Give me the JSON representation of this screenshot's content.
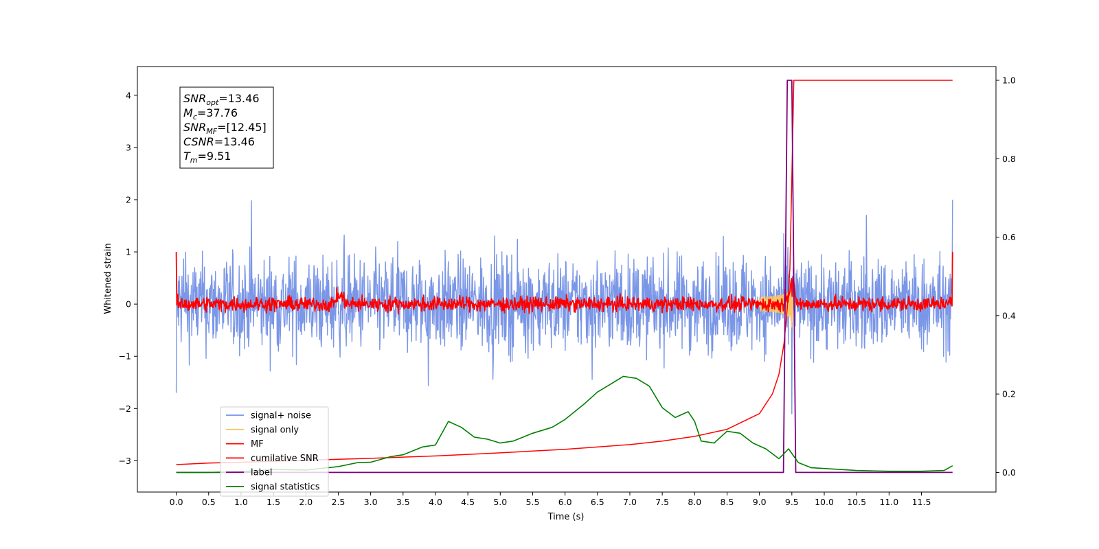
{
  "chart_data": {
    "type": "line",
    "xlabel": "Time (s)",
    "ylabel": "Whitened strain",
    "xlim": [
      -0.6,
      12.65
    ],
    "ylim": [
      -3.6,
      4.55
    ],
    "ylim_right": [
      -0.05,
      1.035
    ],
    "x_ticks": [
      "0.0",
      "0.5",
      "1.0",
      "1.5",
      "2.0",
      "2.5",
      "3.0",
      "3.5",
      "4.0",
      "4.5",
      "5.0",
      "5.5",
      "6.0",
      "6.5",
      "7.0",
      "7.5",
      "8.0",
      "8.5",
      "9.0",
      "9.5",
      "10.0",
      "10.5",
      "11.0",
      "11.5"
    ],
    "y_ticks_left": [
      "−3",
      "−2",
      "−1",
      "0",
      "1",
      "2",
      "3",
      "4"
    ],
    "y_ticks_right": [
      "0.0",
      "0.2",
      "0.4",
      "0.6",
      "0.8",
      "1.0"
    ],
    "grid": false,
    "legend_placement": "lower-left",
    "annotation": {
      "lines": [
        {
          "sym": "SNR",
          "sub": "opt",
          "value": "=13.46"
        },
        {
          "sym": "M",
          "sub": "c",
          "value": "=37.76"
        },
        {
          "sym": "SNR",
          "sub": "MF",
          "value": "=[12.45]"
        },
        {
          "sym": "CSNR",
          "sub": "",
          "value": "=13.46"
        },
        {
          "sym": "T",
          "sub": "m",
          "value": "=9.51"
        }
      ]
    },
    "series": [
      {
        "name": "signal+ noise",
        "axis": "left",
        "color": "#7390e6",
        "kind": "noise",
        "x_range": [
          0.0,
          11.98
        ],
        "amplitude_rms": 0.45,
        "spikes": [
          [
            1.16,
            1.98
          ],
          [
            0.0,
            -1.7
          ],
          [
            9.5,
            -2.1
          ],
          [
            10.65,
            1.7
          ],
          [
            11.98,
            2.0
          ]
        ]
      },
      {
        "name": "signal only",
        "axis": "left",
        "color": "#f5c66b",
        "kind": "chirp",
        "x_range": [
          9.0,
          9.56
        ],
        "peak_amplitude": 0.45,
        "peak_time": 9.5
      },
      {
        "name": "MF",
        "axis": "left",
        "color": "#ff0000",
        "kind": "noise",
        "x_range": [
          0.0,
          11.98
        ],
        "amplitude_rms": 0.07,
        "bumps": [
          [
            2.52,
            0.32
          ],
          [
            9.48,
            0.7
          ]
        ],
        "endpoints": [
          [
            0.0,
            1.0
          ],
          [
            11.98,
            1.0
          ]
        ]
      },
      {
        "name": "cumilative SNR",
        "axis": "right",
        "color": "#ff0000",
        "points": [
          [
            0.0,
            0.02
          ],
          [
            0.5,
            0.024
          ],
          [
            1.0,
            0.026
          ],
          [
            2.0,
            0.031
          ],
          [
            3.0,
            0.036
          ],
          [
            4.0,
            0.042
          ],
          [
            5.0,
            0.05
          ],
          [
            6.0,
            0.059
          ],
          [
            7.0,
            0.071
          ],
          [
            7.5,
            0.08
          ],
          [
            8.0,
            0.092
          ],
          [
            8.5,
            0.11
          ],
          [
            9.0,
            0.15
          ],
          [
            9.2,
            0.2
          ],
          [
            9.3,
            0.25
          ],
          [
            9.38,
            0.33
          ],
          [
            9.43,
            0.42
          ],
          [
            9.47,
            0.52
          ],
          [
            9.5,
            0.75
          ],
          [
            9.53,
            1.0
          ],
          [
            11.98,
            1.0
          ]
        ]
      },
      {
        "name": "label",
        "axis": "right",
        "color": "#800080",
        "points": [
          [
            0.0,
            0.0
          ],
          [
            9.37,
            0.0
          ],
          [
            9.43,
            1.0
          ],
          [
            9.5,
            1.0
          ],
          [
            9.56,
            0.0
          ],
          [
            11.98,
            0.0
          ]
        ]
      },
      {
        "name": "signal statistics",
        "axis": "right",
        "color": "#008000",
        "points": [
          [
            0.0,
            0.0
          ],
          [
            0.5,
            0.0
          ],
          [
            1.0,
            0.002
          ],
          [
            1.5,
            0.008
          ],
          [
            2.0,
            0.006
          ],
          [
            2.5,
            0.015
          ],
          [
            2.8,
            0.025
          ],
          [
            3.0,
            0.026
          ],
          [
            3.3,
            0.04
          ],
          [
            3.5,
            0.045
          ],
          [
            3.8,
            0.065
          ],
          [
            4.0,
            0.07
          ],
          [
            4.2,
            0.13
          ],
          [
            4.4,
            0.115
          ],
          [
            4.6,
            0.09
          ],
          [
            4.8,
            0.085
          ],
          [
            5.0,
            0.075
          ],
          [
            5.2,
            0.08
          ],
          [
            5.5,
            0.1
          ],
          [
            5.8,
            0.115
          ],
          [
            6.0,
            0.135
          ],
          [
            6.3,
            0.175
          ],
          [
            6.5,
            0.205
          ],
          [
            6.7,
            0.225
          ],
          [
            6.9,
            0.245
          ],
          [
            7.1,
            0.24
          ],
          [
            7.3,
            0.22
          ],
          [
            7.5,
            0.165
          ],
          [
            7.7,
            0.14
          ],
          [
            7.9,
            0.155
          ],
          [
            8.0,
            0.13
          ],
          [
            8.1,
            0.08
          ],
          [
            8.3,
            0.075
          ],
          [
            8.5,
            0.105
          ],
          [
            8.7,
            0.1
          ],
          [
            8.9,
            0.075
          ],
          [
            9.1,
            0.06
          ],
          [
            9.3,
            0.035
          ],
          [
            9.45,
            0.06
          ],
          [
            9.6,
            0.025
          ],
          [
            9.8,
            0.012
          ],
          [
            10.0,
            0.01
          ],
          [
            10.5,
            0.005
          ],
          [
            11.0,
            0.003
          ],
          [
            11.5,
            0.003
          ],
          [
            11.85,
            0.005
          ],
          [
            11.98,
            0.017
          ]
        ]
      }
    ]
  }
}
